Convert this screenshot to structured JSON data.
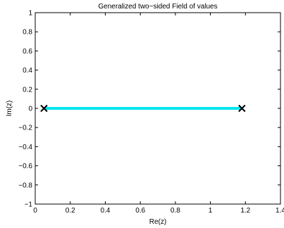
{
  "chart_data": {
    "type": "line",
    "title": "Generalized two−sided Field of values",
    "xlabel": "Re(z)",
    "ylabel": "Im(z)",
    "xlim": [
      0,
      1.4
    ],
    "ylim": [
      -1,
      1
    ],
    "xticks": [
      0,
      0.2,
      0.4,
      0.6,
      0.8,
      1,
      1.2,
      1.4
    ],
    "xtick_labels": [
      "0",
      "0.2",
      "0.4",
      "0.6",
      "0.8",
      "1",
      "1.2",
      "1.4"
    ],
    "yticks": [
      -1,
      -0.8,
      -0.6,
      -0.4,
      -0.2,
      0,
      0.2,
      0.4,
      0.6,
      0.8,
      1
    ],
    "ytick_labels": [
      "−1",
      "−0.8",
      "−0.6",
      "−0.4",
      "−0.2",
      "0",
      "0.2",
      "0.4",
      "0.6",
      "0.8",
      "1"
    ],
    "grid": false,
    "series": [
      {
        "kind": "line",
        "color": "#00e5ee",
        "x": [
          0.05,
          1.18
        ],
        "y": [
          0,
          0
        ]
      },
      {
        "kind": "marker-x",
        "color": "#000000",
        "x": [
          0.05,
          1.18
        ],
        "y": [
          0,
          0
        ]
      }
    ]
  }
}
